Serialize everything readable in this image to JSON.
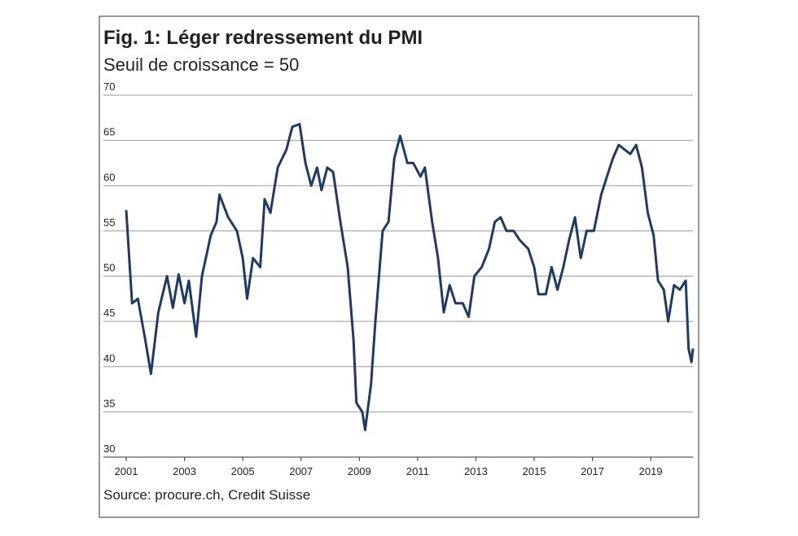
{
  "chart_data": {
    "type": "line",
    "title": "Fig. 1: Léger redressement du PMI",
    "subtitle": "Seuil de croissance = 50",
    "source": "Source: procure.ch, Credit Suisse",
    "x": [
      2001.0,
      2001.2,
      2001.4,
      2001.65,
      2001.85,
      2002.1,
      2002.4,
      2002.6,
      2002.8,
      2003.0,
      2003.15,
      2003.4,
      2003.6,
      2003.9,
      2004.1,
      2004.2,
      2004.5,
      2004.8,
      2005.0,
      2005.15,
      2005.35,
      2005.6,
      2005.75,
      2005.95,
      2006.2,
      2006.5,
      2006.7,
      2006.95,
      2007.15,
      2007.35,
      2007.55,
      2007.7,
      2007.9,
      2008.1,
      2008.35,
      2008.6,
      2008.8,
      2008.9,
      2009.1,
      2009.2,
      2009.4,
      2009.55,
      2009.8,
      2010.0,
      2010.2,
      2010.4,
      2010.65,
      2010.85,
      2011.1,
      2011.25,
      2011.5,
      2011.7,
      2011.9,
      2012.1,
      2012.3,
      2012.55,
      2012.75,
      2012.95,
      2013.2,
      2013.45,
      2013.65,
      2013.85,
      2014.05,
      2014.3,
      2014.5,
      2014.8,
      2015.0,
      2015.15,
      2015.4,
      2015.6,
      2015.8,
      2016.0,
      2016.2,
      2016.4,
      2016.6,
      2016.8,
      2017.05,
      2017.3,
      2017.5,
      2017.7,
      2017.9,
      2018.1,
      2018.3,
      2018.5,
      2018.7,
      2018.9,
      2019.1,
      2019.25,
      2019.45,
      2019.6,
      2019.8,
      2020.0,
      2020.2,
      2020.3,
      2020.4,
      2020.45
    ],
    "series": [
      {
        "color": "#1f3a64",
        "values": [
          57.3,
          47,
          47.5,
          43,
          39.2,
          46,
          50,
          46.5,
          50.2,
          47,
          49.5,
          43.3,
          50,
          54.5,
          56,
          59,
          56.5,
          55,
          52,
          47.5,
          52,
          51,
          58.5,
          57,
          62,
          64,
          66.5,
          66.8,
          62.5,
          60,
          62,
          59.5,
          62,
          61.5,
          56,
          51,
          43,
          36,
          35,
          33,
          38,
          45,
          55,
          56,
          63,
          65.5,
          62.5,
          62.5,
          61,
          62,
          56,
          52,
          46,
          49,
          47,
          47,
          45.5,
          50,
          51,
          53,
          56,
          56.5,
          55,
          55,
          54,
          53,
          51,
          48,
          48,
          51,
          48.5,
          51,
          54,
          56.5,
          52,
          55,
          55,
          59,
          61,
          63,
          64.5,
          64,
          63.5,
          64.5,
          62,
          57,
          54.5,
          49.5,
          48.5,
          45,
          49,
          48.5,
          49.5,
          42,
          40.5,
          42
        ]
      }
    ],
    "xlim": [
      2001,
      2020.45
    ],
    "xticks": [
      2001,
      2003,
      2005,
      2007,
      2009,
      2011,
      2013,
      2015,
      2017,
      2019
    ],
    "ylim": [
      30,
      70
    ],
    "yticks": [
      30,
      35,
      40,
      45,
      50,
      55,
      60,
      65,
      70
    ],
    "grid": true
  }
}
